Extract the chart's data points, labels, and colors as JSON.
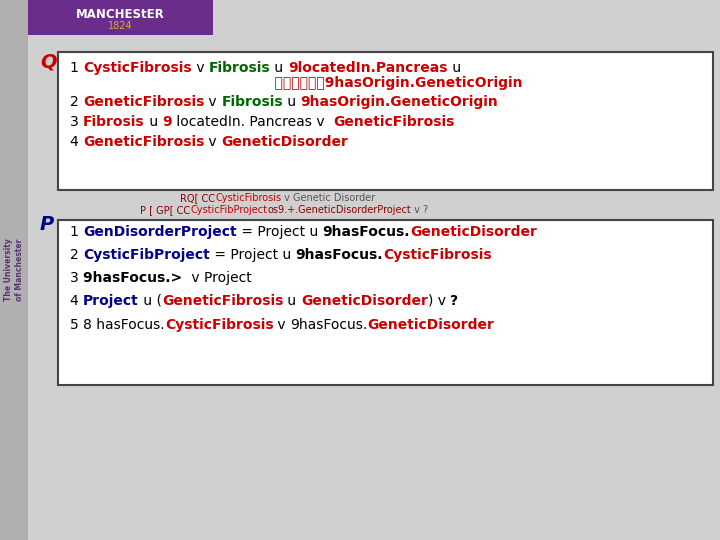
{
  "bg_color": "#d0d0d0",
  "header_bg": "#6b2d8b",
  "sidebar_color": "#9b9b9b",
  "Q_lines": [
    [
      {
        "text": "1 ",
        "color": "#000000",
        "bold": false
      },
      {
        "text": "CysticFibrosis",
        "color": "#cc0000",
        "bold": true
      },
      {
        "text": " v ",
        "color": "#000000",
        "bold": false
      },
      {
        "text": "Fibrosis",
        "color": "#006600",
        "bold": true
      },
      {
        "text": " u ",
        "color": "#000000",
        "bold": false
      },
      {
        "text": "9locatedIn.Pancreas",
        "color": "#cc0000",
        "bold": true
      },
      {
        "text": " u",
        "color": "#000000",
        "bold": false
      }
    ],
    [
      {
        "text": "    \t\t\t\t\t\t9hasOrigin.GeneticOrigin",
        "color": "#cc0000",
        "bold": true,
        "center": true
      }
    ],
    [
      {
        "text": "2 ",
        "color": "#000000",
        "bold": false
      },
      {
        "text": "GeneticFibrosis",
        "color": "#cc0000",
        "bold": true
      },
      {
        "text": " v ",
        "color": "#000000",
        "bold": false
      },
      {
        "text": "Fibrosis",
        "color": "#006600",
        "bold": true
      },
      {
        "text": " u ",
        "color": "#000000",
        "bold": false
      },
      {
        "text": "9hasOrigin.GeneticOrigin",
        "color": "#cc0000",
        "bold": true
      }
    ],
    [
      {
        "text": "3 ",
        "color": "#000000",
        "bold": false
      },
      {
        "text": "Fibrosis",
        "color": "#cc0000",
        "bold": true
      },
      {
        "text": " u ",
        "color": "#000000",
        "bold": false
      },
      {
        "text": "9",
        "color": "#cc0000",
        "bold": true
      },
      {
        "text": " locatedIn. Pancreas",
        "color": "#000000",
        "bold": false
      },
      {
        "text": " v  ",
        "color": "#000000",
        "bold": false
      },
      {
        "text": "GeneticFibrosis",
        "color": "#cc0000",
        "bold": true
      }
    ],
    [
      {
        "text": "4 ",
        "color": "#000000",
        "bold": false
      },
      {
        "text": "GeneticFibrosis",
        "color": "#cc0000",
        "bold": true
      },
      {
        "text": " v ",
        "color": "#000000",
        "bold": false
      },
      {
        "text": "GeneticDisorder",
        "color": "#cc0000",
        "bold": true
      }
    ]
  ],
  "P_lines": [
    [
      {
        "text": "1 ",
        "color": "#000000",
        "bold": false
      },
      {
        "text": "GenDisorderProject",
        "color": "#00008B",
        "bold": true
      },
      {
        "text": " = Project u ",
        "color": "#000000",
        "bold": false
      },
      {
        "text": "9hasFocus.",
        "color": "#000000",
        "bold": true
      },
      {
        "text": "GeneticDisorder",
        "color": "#cc0000",
        "bold": true
      }
    ],
    [
      {
        "text": "2 ",
        "color": "#000000",
        "bold": false
      },
      {
        "text": "CysticFibProject",
        "color": "#00008B",
        "bold": true
      },
      {
        "text": " = Project u ",
        "color": "#000000",
        "bold": false
      },
      {
        "text": "9hasFocus.",
        "color": "#000000",
        "bold": true
      },
      {
        "text": "CysticFibrosis",
        "color": "#cc0000",
        "bold": true
      }
    ],
    [
      {
        "text": "3 ",
        "color": "#000000",
        "bold": false
      },
      {
        "text": "9hasFocus.> ",
        "color": "#000000",
        "bold": true
      },
      {
        "text": " v Project",
        "color": "#000000",
        "bold": false
      }
    ],
    [
      {
        "text": "4 ",
        "color": "#000000",
        "bold": false
      },
      {
        "text": "Project",
        "color": "#00008B",
        "bold": true
      },
      {
        "text": " u (",
        "color": "#000000",
        "bold": false
      },
      {
        "text": "GeneticFibrosis",
        "color": "#cc0000",
        "bold": true
      },
      {
        "text": " u ",
        "color": "#000000",
        "bold": false
      },
      {
        "text": "GeneticDisorder",
        "color": "#cc0000",
        "bold": true
      },
      {
        "text": ") v ",
        "color": "#000000",
        "bold": false
      },
      {
        "text": "?",
        "color": "#000000",
        "bold": true
      }
    ],
    [
      {
        "text": "5 ",
        "color": "#000000",
        "bold": false
      },
      {
        "text": "8 hasFocus.",
        "color": "#000000",
        "bold": false
      },
      {
        "text": "CysticFibrosis",
        "color": "#cc0000",
        "bold": true
      },
      {
        "text": " v ",
        "color": "#000000",
        "bold": false
      },
      {
        "text": "9hasFocus.",
        "color": "#000000",
        "bold": false
      },
      {
        "text": "GeneticDisorder",
        "color": "#cc0000",
        "bold": true
      }
    ]
  ]
}
